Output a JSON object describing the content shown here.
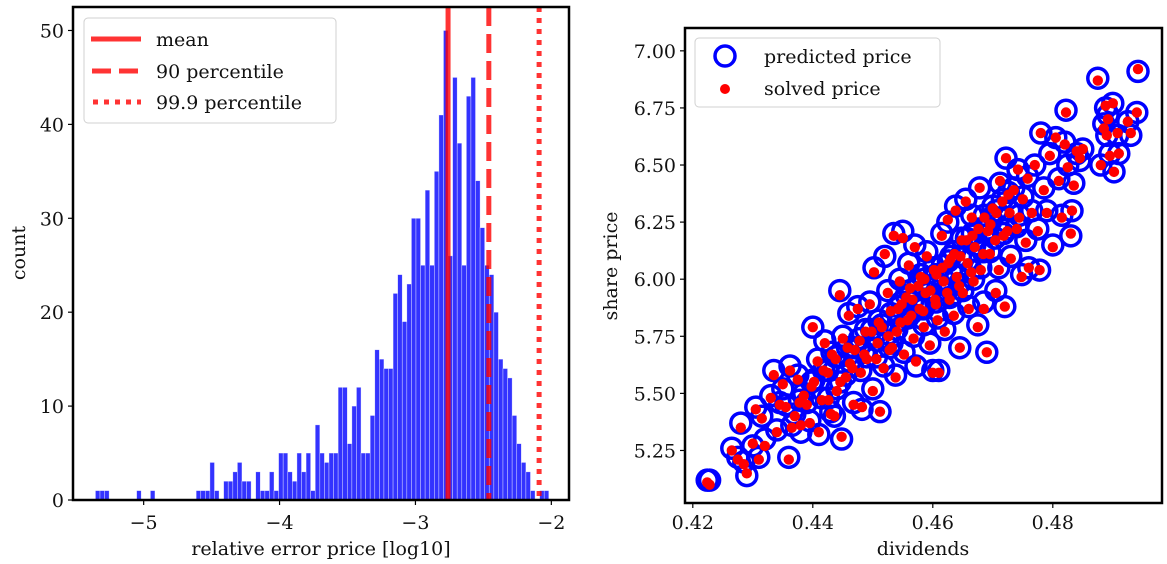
{
  "chart_data": [
    {
      "type": "bar",
      "subtype": "histogram",
      "title": "",
      "xlabel": "relative error price [log10]",
      "ylabel": "count",
      "xlim": [
        -5.52,
        -1.87
      ],
      "ylim": [
        0,
        52.5
      ],
      "xticks": [
        -5,
        -4,
        -3,
        -2
      ],
      "xtick_labels": [
        "−5",
        "−4",
        "−3",
        "−2"
      ],
      "yticks": [
        0,
        10,
        20,
        30,
        40,
        50
      ],
      "ytick_labels": [
        "0",
        "10",
        "20",
        "30",
        "40",
        "50"
      ],
      "bar_color": "#0000ff",
      "bar_alpha": 0.8,
      "bin_start": -5.355,
      "bin_width": 0.0337,
      "counts": [
        1,
        1,
        1,
        0,
        0,
        0,
        0,
        0,
        0,
        1,
        0,
        0,
        1,
        0,
        0,
        0,
        0,
        0,
        0,
        0,
        0,
        0,
        1,
        1,
        1,
        4,
        1,
        0,
        2,
        2,
        3,
        4,
        2,
        2,
        0,
        3,
        1,
        1,
        3,
        1,
        5,
        5,
        3,
        2,
        5,
        3,
        5,
        1,
        8,
        5,
        4,
        5,
        5,
        12,
        12,
        6,
        10,
        12,
        5,
        5,
        9,
        16,
        15,
        14,
        14,
        22,
        24,
        19,
        23,
        30,
        30,
        25,
        33,
        25,
        35,
        41,
        50,
        26,
        45,
        38,
        25,
        43,
        45,
        34,
        29,
        25,
        24,
        20,
        15,
        14,
        13,
        9,
        6,
        4,
        3,
        1,
        0,
        1,
        1
      ],
      "vlines": [
        {
          "name": "mean",
          "x": -2.76,
          "style": "solid",
          "color": "#ff0000"
        },
        {
          "name": "90 percentile",
          "x": -2.46,
          "style": "dashed",
          "color": "#ff0000"
        },
        {
          "name": "99.9 percentile",
          "x": -2.09,
          "style": "dotted",
          "color": "#ff0000"
        }
      ],
      "legend": {
        "placement": "top-left",
        "entries": [
          "mean",
          "90 percentile",
          "99.9 percentile"
        ]
      }
    },
    {
      "type": "scatter",
      "title": "",
      "xlabel": "dividends",
      "ylabel": "share price",
      "xlim": [
        0.4187,
        0.4982
      ],
      "ylim": [
        5.02,
        7.1
      ],
      "xticks": [
        0.42,
        0.44,
        0.46,
        0.48
      ],
      "xtick_labels": [
        "0.42",
        "0.44",
        "0.46",
        "0.48"
      ],
      "yticks": [
        5.25,
        5.5,
        5.75,
        6.0,
        6.25,
        6.5,
        6.75,
        7.0
      ],
      "ytick_labels": [
        "5.25",
        "5.50",
        "5.75",
        "6.00",
        "6.25",
        "6.50",
        "6.75",
        "7.00"
      ],
      "series": [
        {
          "name": "predicted price",
          "marker": "open-circle",
          "color": "#0000ff"
        },
        {
          "name": "solved price",
          "marker": "filled-dot",
          "color": "#ff0000"
        }
      ],
      "legend": {
        "placement": "top-left",
        "entries": [
          "predicted price",
          "solved price"
        ]
      },
      "points_columns": [
        "dividends",
        "predicted price",
        "solved price"
      ],
      "points": [
        [
          0.4224,
          5.12,
          5.11
        ],
        [
          0.4228,
          5.12,
          5.1
        ],
        [
          0.429,
          5.14,
          5.15
        ],
        [
          0.4265,
          5.26,
          5.25
        ],
        [
          0.4275,
          5.22,
          5.21
        ],
        [
          0.4285,
          5.2,
          5.19
        ],
        [
          0.428,
          5.37,
          5.35
        ],
        [
          0.43,
          5.27,
          5.28
        ],
        [
          0.4305,
          5.44,
          5.43
        ],
        [
          0.431,
          5.22,
          5.21
        ],
        [
          0.432,
          5.3,
          5.27
        ],
        [
          0.4315,
          5.4,
          5.39
        ],
        [
          0.433,
          5.49,
          5.48
        ],
        [
          0.4335,
          5.6,
          5.58
        ],
        [
          0.434,
          5.34,
          5.33
        ],
        [
          0.435,
          5.52,
          5.54
        ],
        [
          0.436,
          5.22,
          5.21
        ],
        [
          0.4355,
          5.45,
          5.44
        ],
        [
          0.4362,
          5.62,
          5.6
        ],
        [
          0.437,
          5.41,
          5.4
        ],
        [
          0.4375,
          5.58,
          5.56
        ],
        [
          0.438,
          5.33,
          5.36
        ],
        [
          0.4385,
          5.5,
          5.49
        ],
        [
          0.439,
          5.46,
          5.45
        ],
        [
          0.4395,
          5.38,
          5.37
        ],
        [
          0.44,
          5.79,
          5.79
        ],
        [
          0.4402,
          5.56,
          5.55
        ],
        [
          0.4408,
          5.65,
          5.64
        ],
        [
          0.441,
          5.32,
          5.33
        ],
        [
          0.4415,
          5.48,
          5.47
        ],
        [
          0.442,
          5.73,
          5.72
        ],
        [
          0.4425,
          5.6,
          5.59
        ],
        [
          0.443,
          5.42,
          5.41
        ],
        [
          0.4432,
          5.68,
          5.67
        ],
        [
          0.444,
          5.52,
          5.51
        ],
        [
          0.4445,
          5.95,
          5.93
        ],
        [
          0.4448,
          5.3,
          5.31
        ],
        [
          0.445,
          5.75,
          5.74
        ],
        [
          0.4455,
          5.58,
          5.57
        ],
        [
          0.446,
          5.85,
          5.84
        ],
        [
          0.4462,
          5.64,
          5.63
        ],
        [
          0.4468,
          5.46,
          5.45
        ],
        [
          0.447,
          5.7,
          5.69
        ],
        [
          0.4475,
          5.88,
          5.87
        ],
        [
          0.448,
          5.6,
          5.59
        ],
        [
          0.4482,
          5.43,
          5.44
        ],
        [
          0.4488,
          5.78,
          5.77
        ],
        [
          0.449,
          5.66,
          5.65
        ],
        [
          0.4495,
          5.9,
          5.89
        ],
        [
          0.45,
          5.52,
          5.51
        ],
        [
          0.4502,
          6.05,
          6.03
        ],
        [
          0.4508,
          5.73,
          5.72
        ],
        [
          0.451,
          5.82,
          5.81
        ],
        [
          0.4512,
          5.42,
          5.42
        ],
        [
          0.4518,
          5.62,
          5.61
        ],
        [
          0.452,
          6.1,
          6.11
        ],
        [
          0.4525,
          5.95,
          5.94
        ],
        [
          0.4528,
          5.7,
          5.69
        ],
        [
          0.453,
          5.85,
          5.86
        ],
        [
          0.4535,
          6.2,
          6.19
        ],
        [
          0.4538,
          5.58,
          5.57
        ],
        [
          0.454,
          5.78,
          5.77
        ],
        [
          0.4545,
          6.0,
          5.99
        ],
        [
          0.4548,
          5.9,
          5.89
        ],
        [
          0.455,
          6.21,
          6.18
        ],
        [
          0.4552,
          5.68,
          5.67
        ],
        [
          0.4558,
          5.83,
          5.82
        ],
        [
          0.456,
          6.07,
          6.06
        ],
        [
          0.4562,
          5.95,
          5.96
        ],
        [
          0.4568,
          5.75,
          5.74
        ],
        [
          0.457,
          6.15,
          6.14
        ],
        [
          0.4572,
          5.62,
          5.64
        ],
        [
          0.4578,
          5.88,
          5.87
        ],
        [
          0.458,
          6.02,
          6.01
        ],
        [
          0.4585,
          5.8,
          5.79
        ],
        [
          0.4588,
          5.95,
          5.94
        ],
        [
          0.459,
          6.12,
          6.1
        ],
        [
          0.4595,
          5.72,
          5.71
        ],
        [
          0.46,
          5.6,
          5.59
        ],
        [
          0.4602,
          6.05,
          6.04
        ],
        [
          0.4605,
          5.9,
          5.89
        ],
        [
          0.4608,
          5.83,
          5.82
        ],
        [
          0.461,
          5.6,
          5.59
        ],
        [
          0.4615,
          6.2,
          6.19
        ],
        [
          0.4618,
          6.0,
          5.99
        ],
        [
          0.462,
          5.78,
          5.77
        ],
        [
          0.4625,
          6.25,
          6.26
        ],
        [
          0.4628,
          5.92,
          5.91
        ],
        [
          0.463,
          6.1,
          6.09
        ],
        [
          0.4635,
          5.85,
          5.84
        ],
        [
          0.4638,
          6.32,
          6.3
        ],
        [
          0.464,
          6.02,
          6.01
        ],
        [
          0.4645,
          5.7,
          5.7
        ],
        [
          0.4648,
          6.18,
          6.17
        ],
        [
          0.465,
          5.95,
          5.94
        ],
        [
          0.4655,
          6.35,
          6.34
        ],
        [
          0.4658,
          6.08,
          6.07
        ],
        [
          0.466,
          5.88,
          5.87
        ],
        [
          0.4665,
          6.28,
          6.27
        ],
        [
          0.4668,
          6.0,
          5.99
        ],
        [
          0.467,
          6.15,
          6.14
        ],
        [
          0.4675,
          5.8,
          5.79
        ],
        [
          0.4678,
          6.4,
          6.4
        ],
        [
          0.468,
          6.05,
          6.04
        ],
        [
          0.4685,
          5.9,
          5.87
        ],
        [
          0.469,
          5.68,
          5.68
        ],
        [
          0.4692,
          6.22,
          6.21
        ],
        [
          0.4695,
          6.12,
          6.11
        ],
        [
          0.47,
          6.32,
          6.31
        ],
        [
          0.4705,
          5.95,
          5.94
        ],
        [
          0.471,
          6.05,
          6.04
        ],
        [
          0.4712,
          6.42,
          6.43
        ],
        [
          0.4718,
          6.2,
          6.19
        ],
        [
          0.472,
          5.88,
          5.88
        ],
        [
          0.4722,
          6.53,
          6.53
        ],
        [
          0.4728,
          6.3,
          6.29
        ],
        [
          0.473,
          6.1,
          6.09
        ],
        [
          0.4735,
          6.4,
          6.39
        ],
        [
          0.474,
          6.23,
          6.22
        ],
        [
          0.4742,
          6.48,
          6.48
        ],
        [
          0.4748,
          6.02,
          6.01
        ],
        [
          0.475,
          6.36,
          6.35
        ],
        [
          0.4755,
          6.17,
          6.16
        ],
        [
          0.4758,
          6.45,
          6.44
        ],
        [
          0.476,
          6.05,
          6.05
        ],
        [
          0.4765,
          6.3,
          6.29
        ],
        [
          0.477,
          6.5,
          6.5
        ],
        [
          0.4775,
          6.22,
          6.21
        ],
        [
          0.4778,
          6.04,
          6.04
        ],
        [
          0.478,
          6.64,
          6.64
        ],
        [
          0.4785,
          6.4,
          6.39
        ],
        [
          0.479,
          6.3,
          6.29
        ],
        [
          0.4795,
          6.55,
          6.54
        ],
        [
          0.48,
          6.15,
          6.14
        ],
        [
          0.4805,
          6.62,
          6.62
        ],
        [
          0.481,
          6.44,
          6.43
        ],
        [
          0.4815,
          6.28,
          6.27
        ],
        [
          0.482,
          6.6,
          6.59
        ],
        [
          0.4822,
          6.74,
          6.73
        ],
        [
          0.4825,
          6.5,
          6.49
        ],
        [
          0.483,
          6.19,
          6.2
        ],
        [
          0.4832,
          6.3,
          6.3
        ],
        [
          0.4835,
          6.42,
          6.41
        ],
        [
          0.484,
          6.55,
          6.56
        ],
        [
          0.4845,
          6.52,
          6.53
        ],
        [
          0.485,
          6.57,
          6.57
        ],
        [
          0.4875,
          6.88,
          6.87
        ],
        [
          0.488,
          6.5,
          6.5
        ],
        [
          0.4885,
          6.68,
          6.66
        ],
        [
          0.4888,
          6.75,
          6.76
        ],
        [
          0.489,
          6.63,
          6.63
        ],
        [
          0.4892,
          6.72,
          6.7
        ],
        [
          0.4895,
          6.55,
          6.54
        ],
        [
          0.49,
          6.77,
          6.77
        ],
        [
          0.4902,
          6.47,
          6.47
        ],
        [
          0.4908,
          6.63,
          6.64
        ],
        [
          0.491,
          6.55,
          6.55
        ],
        [
          0.4925,
          6.69,
          6.69
        ],
        [
          0.493,
          6.63,
          6.64
        ],
        [
          0.494,
          6.73,
          6.73
        ],
        [
          0.4942,
          6.91,
          6.92
        ],
        [
          0.4345,
          5.46,
          5.45
        ],
        [
          0.4365,
          5.36,
          5.35
        ],
        [
          0.4378,
          5.47,
          5.46
        ],
        [
          0.4398,
          5.55,
          5.53
        ],
        [
          0.4418,
          5.6,
          5.6
        ],
        [
          0.4438,
          5.66,
          5.65
        ],
        [
          0.4458,
          5.7,
          5.7
        ],
        [
          0.4478,
          5.74,
          5.73
        ],
        [
          0.4498,
          5.78,
          5.77
        ],
        [
          0.4515,
          5.8,
          5.79
        ],
        [
          0.4532,
          5.72,
          5.7
        ],
        [
          0.4542,
          5.88,
          5.87
        ],
        [
          0.4556,
          5.93,
          5.92
        ],
        [
          0.4566,
          5.9,
          5.91
        ],
        [
          0.4576,
          5.98,
          5.97
        ],
        [
          0.4586,
          6.0,
          6.0
        ],
        [
          0.4596,
          5.96,
          5.95
        ],
        [
          0.4606,
          6.02,
          6.02
        ],
        [
          0.4616,
          6.06,
          6.05
        ],
        [
          0.4626,
          6.08,
          6.07
        ],
        [
          0.4636,
          6.12,
          6.11
        ],
        [
          0.4646,
          6.1,
          6.1
        ],
        [
          0.4656,
          6.18,
          6.17
        ],
        [
          0.4666,
          6.2,
          6.19
        ],
        [
          0.4676,
          6.22,
          6.22
        ],
        [
          0.4686,
          6.28,
          6.27
        ],
        [
          0.4696,
          6.25,
          6.24
        ],
        [
          0.4706,
          6.3,
          6.29
        ],
        [
          0.4716,
          6.35,
          6.34
        ],
        [
          0.4726,
          6.38,
          6.37
        ],
        [
          0.4436,
          5.4,
          5.4
        ],
        [
          0.4426,
          5.48,
          5.47
        ],
        [
          0.4446,
          5.55,
          5.55
        ],
        [
          0.4466,
          5.62,
          5.61
        ],
        [
          0.4486,
          5.68,
          5.67
        ],
        [
          0.4506,
          5.66,
          5.65
        ],
        [
          0.4526,
          5.76,
          5.75
        ],
        [
          0.4546,
          5.82,
          5.81
        ],
        [
          0.4564,
          5.85,
          5.84
        ],
        [
          0.4584,
          5.87,
          5.86
        ],
        [
          0.4604,
          5.92,
          5.91
        ],
        [
          0.4624,
          5.95,
          5.94
        ],
        [
          0.4644,
          5.98,
          5.97
        ],
        [
          0.4664,
          6.04,
          6.03
        ],
        [
          0.4684,
          6.12,
          6.11
        ],
        [
          0.4704,
          6.18,
          6.17
        ],
        [
          0.4724,
          6.22,
          6.21
        ],
        [
          0.4744,
          6.28,
          6.27
        ]
      ]
    }
  ]
}
